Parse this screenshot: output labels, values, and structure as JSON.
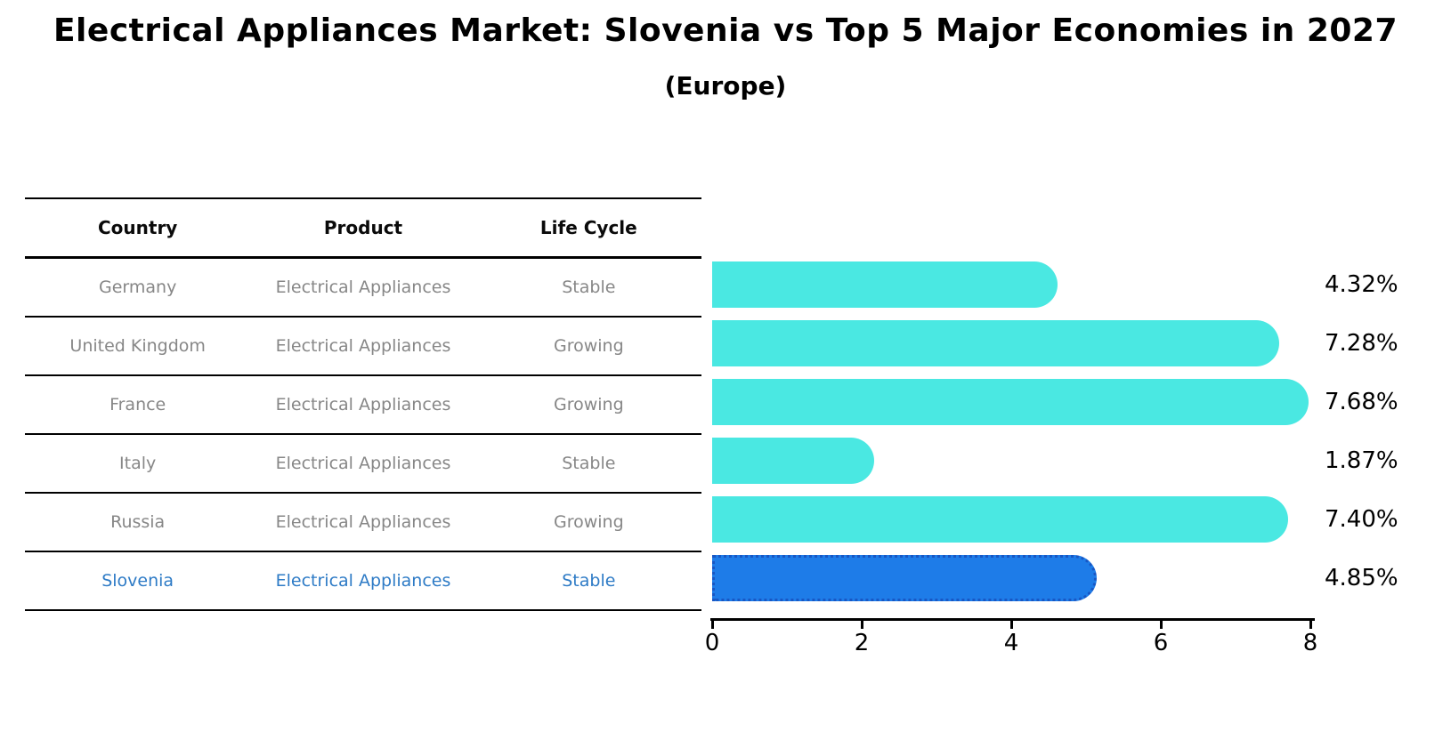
{
  "title": "Electrical Appliances Market: Slovenia vs Top 5 Major Economies in 2027",
  "subtitle": "(Europe)",
  "table": {
    "columns": [
      "Country",
      "Product",
      "Life Cycle"
    ]
  },
  "chart_data": {
    "type": "bar",
    "orientation": "horizontal",
    "title": "Electrical Appliances Market: Slovenia vs Top 5 Major Economies in 2027",
    "subtitle": "(Europe)",
    "xlabel": "",
    "ylabel": "",
    "xlim": [
      0,
      8
    ],
    "xticks": [
      0,
      2,
      4,
      6,
      8
    ],
    "grid": false,
    "legend": "none",
    "value_suffix": "%",
    "categories": [
      "Germany",
      "United Kingdom",
      "France",
      "Italy",
      "Russia",
      "Slovenia"
    ],
    "values": [
      4.32,
      7.28,
      7.68,
      1.87,
      7.4,
      4.85
    ],
    "rows": [
      {
        "country": "Germany",
        "product": "Electrical Appliances",
        "life_cycle": "Stable",
        "value": 4.32,
        "label": "4.32%",
        "highlight": false
      },
      {
        "country": "United Kingdom",
        "product": "Electrical Appliances",
        "life_cycle": "Growing",
        "value": 7.28,
        "label": "7.28%",
        "highlight": false
      },
      {
        "country": "France",
        "product": "Electrical Appliances",
        "life_cycle": "Growing",
        "value": 7.68,
        "label": "7.68%",
        "highlight": false
      },
      {
        "country": "Italy",
        "product": "Electrical Appliances",
        "life_cycle": "Stable",
        "value": 1.87,
        "label": "1.87%",
        "highlight": false
      },
      {
        "country": "Russia",
        "product": "Electrical Appliances",
        "life_cycle": "Growing",
        "value": 7.4,
        "label": "7.40%",
        "highlight": false
      },
      {
        "country": "Slovenia",
        "product": "Electrical Appliances",
        "life_cycle": "Stable",
        "value": 4.85,
        "label": "4.85%",
        "highlight": true
      }
    ],
    "colors": {
      "bar": "#4ae8e2",
      "highlight_bar": "#1e7ce8",
      "highlight_border": "#1857c4",
      "row_text": "#878787",
      "highlight_text": "#2e7bc6",
      "axis": "#000000",
      "label_text": "#000000"
    }
  }
}
